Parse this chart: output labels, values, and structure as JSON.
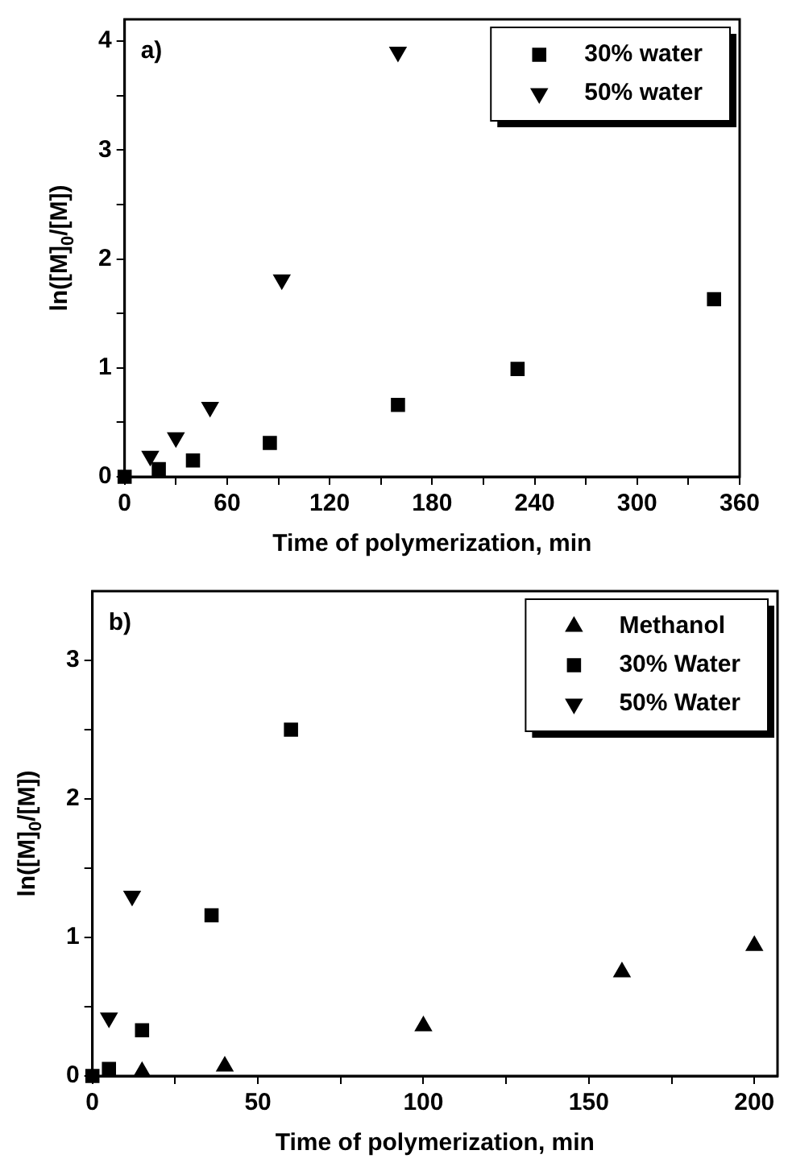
{
  "chart_data": [
    {
      "type": "scatter",
      "xlabel": "Time of polymerization, min",
      "ylabel": "ln([M]$_{0}$/[M])",
      "annotations": [
        "a)"
      ],
      "xlim": [
        0,
        360
      ],
      "xticks": [
        0,
        {
          "value": 30,
          "label": null
        },
        60,
        {
          "value": 90,
          "label": null
        },
        120,
        {
          "value": 150,
          "label": null
        },
        180,
        {
          "value": 210,
          "label": null
        },
        240,
        {
          "value": 270,
          "label": null
        },
        300,
        {
          "value": 330,
          "label": null
        },
        360
      ],
      "ylim": [
        0,
        4.2
      ],
      "yticks": [
        0,
        {
          "value": 0.5,
          "label": null
        },
        1,
        {
          "value": 1.5,
          "label": null
        },
        2,
        {
          "value": 2.5,
          "label": null
        },
        3,
        {
          "value": 3.5,
          "label": null
        },
        4
      ],
      "grid": false,
      "legend": "top right",
      "series": [
        {
          "name": "30% water",
          "color": "#000000",
          "marker": "square",
          "x": [
            0,
            20,
            40,
            85,
            160,
            230,
            345
          ],
          "values": [
            0,
            0.07,
            0.15,
            0.31,
            0.66,
            0.99,
            1.63
          ]
        },
        {
          "name": "50% water",
          "color": "#000000",
          "marker": "triangle-down",
          "x": [
            15,
            30,
            50,
            92,
            160
          ],
          "values": [
            0.19,
            0.36,
            0.64,
            1.81,
            3.9
          ]
        }
      ]
    },
    {
      "type": "scatter",
      "xlabel": "Time of polymerization, min",
      "ylabel": "ln([M]$_{0}$/[M])",
      "annotations": [
        "b)"
      ],
      "xlim": [
        0,
        207
      ],
      "xticks": [
        0,
        {
          "value": 25,
          "label": null
        },
        50,
        {
          "value": 75,
          "label": null
        },
        100,
        {
          "value": 125,
          "label": null
        },
        150,
        {
          "value": 175,
          "label": null
        },
        200
      ],
      "ylim": [
        0,
        3.5
      ],
      "yticks": [
        0,
        {
          "value": 0.5,
          "label": null
        },
        1,
        {
          "value": 1.5,
          "label": null
        },
        2,
        {
          "value": 2.5,
          "label": null
        },
        3
      ],
      "grid": false,
      "legend": "top right",
      "series": [
        {
          "name": "Methanol",
          "color": "#000000",
          "marker": "triangle",
          "x": [
            15,
            40,
            100,
            160,
            200
          ],
          "values": [
            0.03,
            0.07,
            0.36,
            0.75,
            0.94
          ]
        },
        {
          "name": "30% Water",
          "color": "#000000",
          "marker": "square",
          "x": [
            0,
            5,
            15,
            36,
            60
          ],
          "values": [
            0,
            0.05,
            0.33,
            1.16,
            2.5
          ]
        },
        {
          "name": "50% Water",
          "color": "#000000",
          "marker": "triangle-down",
          "x": [
            5,
            12
          ],
          "values": [
            0.42,
            1.3
          ]
        }
      ]
    }
  ]
}
